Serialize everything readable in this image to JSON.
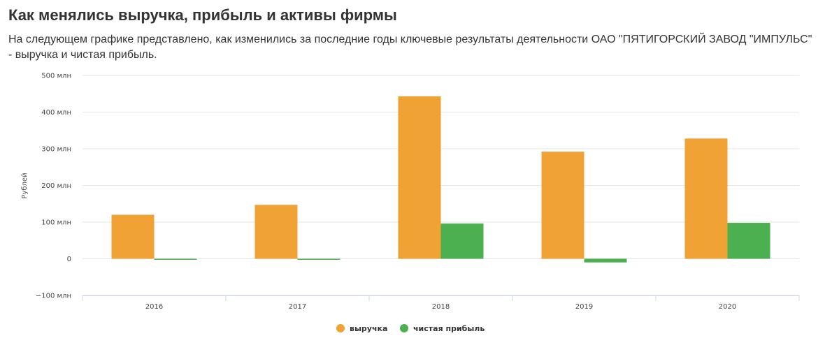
{
  "page": {
    "title": "Как менялись выручка, прибыль и активы фирмы",
    "subtitle": "На следующем графике представлено, как изменились за последние годы ключевые результаты деятельности ОАО \"ПЯТИГОРСКИЙ ЗАВОД \"ИМПУЛЬС\" - выручка и чистая прибыль."
  },
  "colors": {
    "revenue": "#F0A334",
    "net_profit": "#4CAF50",
    "grid": "#E6E6E6",
    "axis": "#CCD6EB"
  },
  "chart_data": {
    "type": "bar",
    "categories": [
      "2016",
      "2017",
      "2018",
      "2019",
      "2020"
    ],
    "series": [
      {
        "name": "выручка",
        "values": [
          120000000,
          147000000,
          443000000,
          292000000,
          328000000
        ]
      },
      {
        "name": "чистая прибыль",
        "values": [
          -2000000,
          -1000000,
          96000000,
          -10000000,
          98000000
        ]
      }
    ],
    "ylabel": "Рублей",
    "xlabel": "",
    "ylim": [
      -100000000,
      500000000
    ],
    "yticks": [
      {
        "value": 500000000,
        "label": "500 млн"
      },
      {
        "value": 400000000,
        "label": "400 млн"
      },
      {
        "value": 300000000,
        "label": "300 млн"
      },
      {
        "value": 200000000,
        "label": "200 млн"
      },
      {
        "value": 100000000,
        "label": "100 млн"
      },
      {
        "value": 0,
        "label": "0"
      },
      {
        "value": -100000000,
        "label": "−100 млн"
      }
    ],
    "grid": true,
    "legend_position": "bottom-center"
  }
}
